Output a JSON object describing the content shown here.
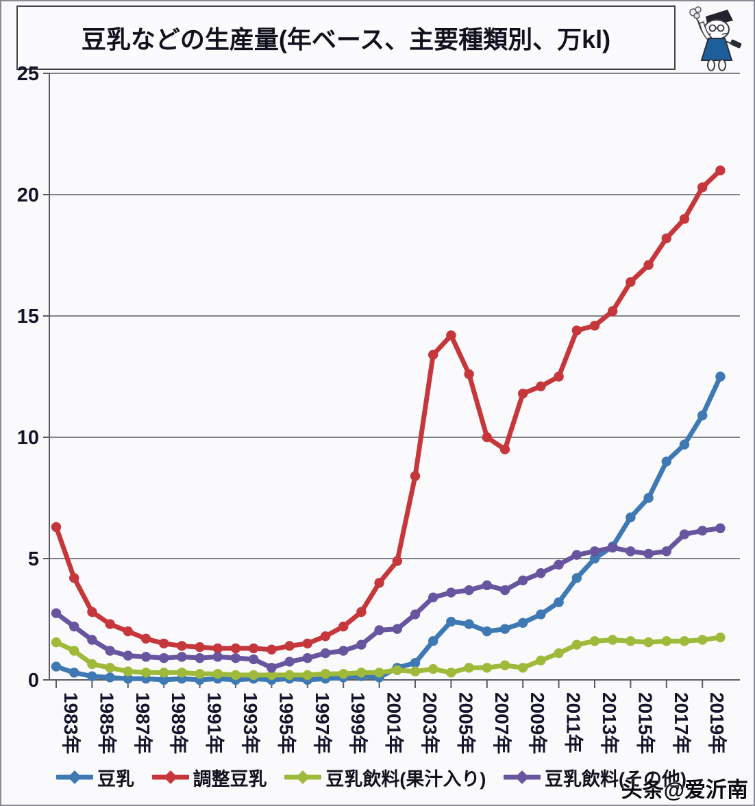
{
  "watermark": "头条@爱沂南",
  "chart_data": {
    "type": "line",
    "title": "豆乳などの生産量(年ベース、主要種類別、万kl)",
    "xlabel": "",
    "ylabel": "",
    "ylim": [
      0,
      25
    ],
    "yticks": [
      0,
      5,
      10,
      15,
      20,
      25
    ],
    "grid": "horizontal",
    "legend_position": "bottom",
    "x_tick_labels": [
      "1983年",
      "1985年",
      "1987年",
      "1989年",
      "1991年",
      "1993年",
      "1995年",
      "1997年",
      "1999年",
      "2001年",
      "2003年",
      "2005年",
      "2007年",
      "2009年",
      "2011年",
      "2013年",
      "2015年",
      "2017年",
      "2019年"
    ],
    "years": [
      1983,
      1984,
      1985,
      1986,
      1987,
      1988,
      1989,
      1990,
      1991,
      1992,
      1993,
      1994,
      1995,
      1996,
      1997,
      1998,
      1999,
      2000,
      2001,
      2002,
      2003,
      2004,
      2005,
      2006,
      2007,
      2008,
      2009,
      2010,
      2011,
      2012,
      2013,
      2014,
      2015,
      2016,
      2017,
      2018,
      2019,
      2020
    ],
    "series": [
      {
        "name": "豆乳",
        "color": "#3e79b4",
        "values": [
          0.55,
          0.3,
          0.15,
          0.1,
          0.05,
          0.05,
          0,
          0.05,
          0,
          0.05,
          0,
          0.05,
          0,
          0.05,
          0,
          0.05,
          0.1,
          0.15,
          0.1,
          0.5,
          0.7,
          1.6,
          2.4,
          2.3,
          2.0,
          2.1,
          2.35,
          2.7,
          3.2,
          4.2,
          5.0,
          5.5,
          6.7,
          7.5,
          9.0,
          9.7,
          10.9,
          12.5
        ]
      },
      {
        "name": "調整豆乳",
        "color": "#c5373b",
        "values": [
          6.3,
          4.2,
          2.8,
          2.3,
          2.0,
          1.7,
          1.5,
          1.4,
          1.35,
          1.3,
          1.3,
          1.3,
          1.25,
          1.4,
          1.5,
          1.8,
          2.2,
          2.8,
          4.0,
          4.9,
          8.4,
          13.4,
          14.2,
          12.6,
          10.0,
          9.5,
          11.8,
          12.1,
          12.5,
          14.4,
          14.6,
          15.2,
          16.4,
          17.1,
          18.2,
          19.0,
          20.3,
          21.0
        ]
      },
      {
        "name": "豆乳飲料(果汁入り)",
        "color": "#9fba3b",
        "values": [
          1.55,
          1.2,
          0.65,
          0.5,
          0.35,
          0.3,
          0.3,
          0.3,
          0.25,
          0.25,
          0.2,
          0.2,
          0.2,
          0.2,
          0.2,
          0.25,
          0.25,
          0.3,
          0.3,
          0.4,
          0.35,
          0.45,
          0.3,
          0.5,
          0.5,
          0.6,
          0.5,
          0.8,
          1.1,
          1.45,
          1.6,
          1.65,
          1.6,
          1.55,
          1.6,
          1.6,
          1.65,
          1.75
        ]
      },
      {
        "name": "豆乳飲料(その他)",
        "color": "#67569f",
        "values": [
          2.75,
          2.2,
          1.65,
          1.2,
          1.0,
          0.95,
          0.9,
          0.95,
          0.9,
          0.95,
          0.9,
          0.85,
          0.5,
          0.75,
          0.9,
          1.1,
          1.2,
          1.45,
          2.05,
          2.1,
          2.7,
          3.4,
          3.6,
          3.7,
          3.9,
          3.7,
          4.1,
          4.4,
          4.75,
          5.15,
          5.3,
          5.45,
          5.3,
          5.2,
          5.3,
          6.0,
          6.15,
          6.25
        ]
      }
    ]
  }
}
